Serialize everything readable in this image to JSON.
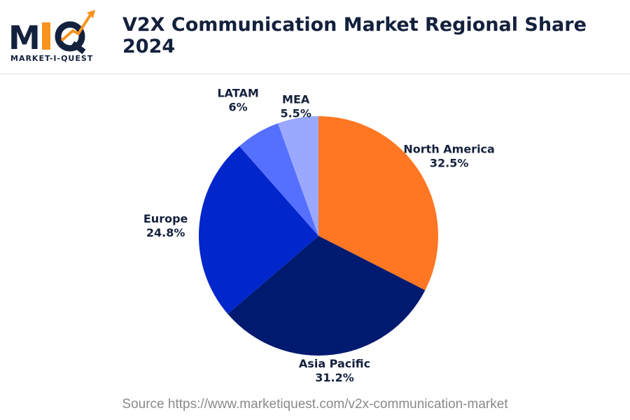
{
  "header": {
    "title": "V2X Communication Market Regional Share 2024",
    "logo_text": "MARKET-I-QUEST",
    "logo_letters": "MIQ"
  },
  "source": "Source https://www.marketiquest.com/v2x-communication-market",
  "chart_data": {
    "type": "pie",
    "title": "V2X Communication Market Regional Share 2024",
    "start": "top",
    "direction": "clockwise",
    "categories": [
      "North America",
      "Asia Pacific",
      "Europe",
      "LATAM",
      "MEA"
    ],
    "values": [
      32.5,
      31.2,
      24.8,
      6,
      5.5
    ],
    "labels": [
      "32.5%",
      "31.2%",
      "24.8%",
      "6%",
      "5.5%"
    ],
    "colors": [
      "#FF7722",
      "#001A70",
      "#0026CC",
      "#5570FF",
      "#9AA8FF"
    ]
  }
}
